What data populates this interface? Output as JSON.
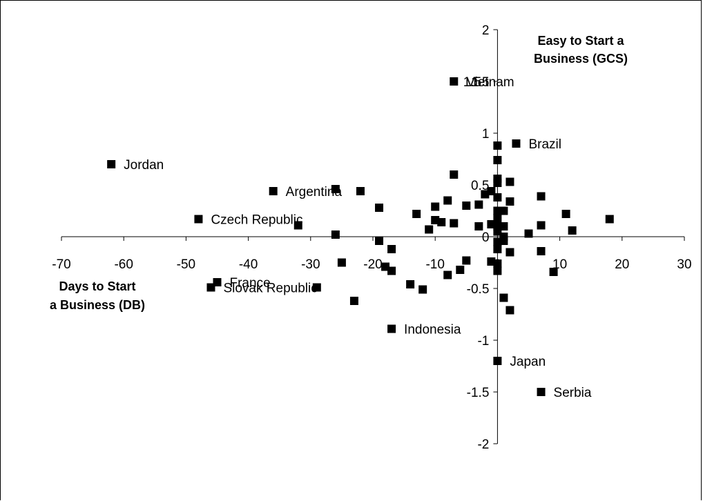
{
  "chart_data": {
    "type": "scatter",
    "title": "",
    "xlabel_lines": [
      "Days to Start",
      "a Business (DB)"
    ],
    "ylabel_lines": [
      "Easy to Start a",
      "Business (GCS)"
    ],
    "xlim": [
      -70,
      30
    ],
    "ylim": [
      -2,
      2
    ],
    "xticks": [
      -70,
      -60,
      -50,
      -40,
      -30,
      -20,
      -10,
      0,
      10,
      20,
      30
    ],
    "yticks": [
      -2,
      -1.5,
      -1,
      -0.5,
      0,
      0.5,
      1,
      1.5,
      2
    ],
    "marker_color": "#000000",
    "grid": false,
    "points": [
      {
        "x": -62,
        "y": 0.7,
        "label": "Jordan"
      },
      {
        "x": -48,
        "y": 0.17,
        "label": "Czech Republic"
      },
      {
        "x": -36,
        "y": 0.44,
        "label": "Argentina"
      },
      {
        "x": -45,
        "y": -0.44,
        "label": "France"
      },
      {
        "x": -46,
        "y": -0.49,
        "label": "Slovak Republic"
      },
      {
        "x": -7,
        "y": 1.5,
        "label": "Vietnam"
      },
      {
        "x": 3,
        "y": 0.9,
        "label": "Brazil"
      },
      {
        "x": -17,
        "y": -0.89,
        "label": "Indonesia"
      },
      {
        "x": 0,
        "y": -1.2,
        "label": "Japan"
      },
      {
        "x": 7,
        "y": -1.5,
        "label": "Serbia"
      },
      {
        "x": -32,
        "y": 0.11,
        "label": ""
      },
      {
        "x": -26,
        "y": 0.46,
        "label": ""
      },
      {
        "x": -22,
        "y": 0.44,
        "label": ""
      },
      {
        "x": -26,
        "y": 0.02,
        "label": ""
      },
      {
        "x": -25,
        "y": -0.25,
        "label": ""
      },
      {
        "x": -29,
        "y": -0.49,
        "label": ""
      },
      {
        "x": -23,
        "y": -0.62,
        "label": ""
      },
      {
        "x": -19,
        "y": 0.28,
        "label": ""
      },
      {
        "x": -19,
        "y": -0.04,
        "label": ""
      },
      {
        "x": -18,
        "y": -0.29,
        "label": ""
      },
      {
        "x": -17,
        "y": -0.12,
        "label": ""
      },
      {
        "x": -17,
        "y": -0.33,
        "label": ""
      },
      {
        "x": -14,
        "y": -0.46,
        "label": ""
      },
      {
        "x": -13,
        "y": 0.22,
        "label": ""
      },
      {
        "x": -12,
        "y": -0.51,
        "label": ""
      },
      {
        "x": -11,
        "y": 0.07,
        "label": ""
      },
      {
        "x": -10,
        "y": 0.29,
        "label": ""
      },
      {
        "x": -10,
        "y": 0.16,
        "label": ""
      },
      {
        "x": -9,
        "y": 0.14,
        "label": ""
      },
      {
        "x": -8,
        "y": 0.35,
        "label": ""
      },
      {
        "x": -8,
        "y": -0.37,
        "label": ""
      },
      {
        "x": -7,
        "y": 0.6,
        "label": ""
      },
      {
        "x": -7,
        "y": 0.13,
        "label": ""
      },
      {
        "x": -6,
        "y": -0.32,
        "label": ""
      },
      {
        "x": -5,
        "y": 0.3,
        "label": ""
      },
      {
        "x": -5,
        "y": -0.23,
        "label": ""
      },
      {
        "x": -3,
        "y": 0.31,
        "label": ""
      },
      {
        "x": -3,
        "y": 0.1,
        "label": ""
      },
      {
        "x": -2,
        "y": 0.41,
        "label": ""
      },
      {
        "x": -1,
        "y": 0.44,
        "label": ""
      },
      {
        "x": -1,
        "y": 0.12,
        "label": ""
      },
      {
        "x": -1,
        "y": -0.24,
        "label": ""
      },
      {
        "x": 0,
        "y": 0.88,
        "label": ""
      },
      {
        "x": 0,
        "y": 0.74,
        "label": ""
      },
      {
        "x": 0,
        "y": 0.56,
        "label": ""
      },
      {
        "x": 0,
        "y": 0.52,
        "label": ""
      },
      {
        "x": 0,
        "y": 0.38,
        "label": ""
      },
      {
        "x": 0,
        "y": 0.25,
        "label": ""
      },
      {
        "x": 0,
        "y": 0.18,
        "label": ""
      },
      {
        "x": 0,
        "y": 0.1,
        "label": ""
      },
      {
        "x": 0,
        "y": 0.05,
        "label": ""
      },
      {
        "x": 0,
        "y": -0.05,
        "label": ""
      },
      {
        "x": 0,
        "y": -0.12,
        "label": ""
      },
      {
        "x": 0,
        "y": -0.26,
        "label": ""
      },
      {
        "x": 0,
        "y": -0.33,
        "label": ""
      },
      {
        "x": 1,
        "y": 0.25,
        "label": ""
      },
      {
        "x": 1,
        "y": 0.1,
        "label": ""
      },
      {
        "x": 1,
        "y": 0.0,
        "label": ""
      },
      {
        "x": 1,
        "y": -0.04,
        "label": ""
      },
      {
        "x": 1,
        "y": -0.59,
        "label": ""
      },
      {
        "x": 2,
        "y": 0.53,
        "label": ""
      },
      {
        "x": 2,
        "y": 0.34,
        "label": ""
      },
      {
        "x": 2,
        "y": -0.15,
        "label": ""
      },
      {
        "x": 2,
        "y": -0.71,
        "label": ""
      },
      {
        "x": 5,
        "y": 0.03,
        "label": ""
      },
      {
        "x": 7,
        "y": 0.39,
        "label": ""
      },
      {
        "x": 7,
        "y": 0.11,
        "label": ""
      },
      {
        "x": 7,
        "y": -0.14,
        "label": ""
      },
      {
        "x": 9,
        "y": -0.34,
        "label": ""
      },
      {
        "x": 11,
        "y": 0.22,
        "label": ""
      },
      {
        "x": 12,
        "y": 0.06,
        "label": ""
      },
      {
        "x": 18,
        "y": 0.17,
        "label": ""
      }
    ],
    "overlay_text": {
      "text": "1.5",
      "x": -5.5,
      "y": 1.5
    }
  }
}
